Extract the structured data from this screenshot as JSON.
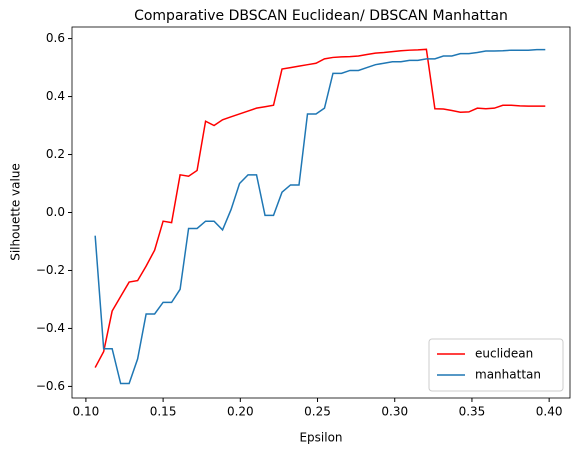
{
  "chart_data": {
    "type": "line",
    "title": "Comparative DBSCAN Euclidean/ DBSCAN Manhattan",
    "xlabel": "Epsilon",
    "ylabel": "Silhouette value",
    "x": [
      0.106,
      0.1115,
      0.117,
      0.1225,
      0.128,
      0.1335,
      0.139,
      0.1445,
      0.15,
      0.1555,
      0.161,
      0.1665,
      0.172,
      0.1775,
      0.183,
      0.1885,
      0.194,
      0.1995,
      0.205,
      0.2105,
      0.216,
      0.2215,
      0.227,
      0.2325,
      0.238,
      0.2435,
      0.249,
      0.2545,
      0.26,
      0.2655,
      0.271,
      0.2765,
      0.282,
      0.2875,
      0.293,
      0.2985,
      0.304,
      0.3095,
      0.315,
      0.3205,
      0.326,
      0.3315,
      0.337,
      0.3425,
      0.348,
      0.3535,
      0.359,
      0.3645,
      0.37,
      0.3755,
      0.381,
      0.3865,
      0.392,
      0.3975
    ],
    "series": [
      {
        "name": "euclidean",
        "color": "#ff0000",
        "values": [
          -0.535,
          -0.48,
          -0.34,
          -0.29,
          -0.24,
          -0.235,
          -0.185,
          -0.13,
          -0.03,
          -0.035,
          0.13,
          0.125,
          0.145,
          0.315,
          0.3,
          0.32,
          0.33,
          0.34,
          0.35,
          0.36,
          0.365,
          0.37,
          0.495,
          0.5,
          0.505,
          0.51,
          0.515,
          0.53,
          0.535,
          0.537,
          0.538,
          0.54,
          0.545,
          0.55,
          0.552,
          0.555,
          0.558,
          0.56,
          0.561,
          0.563,
          0.358,
          0.357,
          0.352,
          0.346,
          0.347,
          0.36,
          0.358,
          0.36,
          0.37,
          0.37,
          0.368,
          0.367,
          0.367,
          0.367
        ]
      },
      {
        "name": "manhattan",
        "color": "#1f77b4",
        "values": [
          -0.08,
          -0.47,
          -0.47,
          -0.59,
          -0.59,
          -0.505,
          -0.35,
          -0.35,
          -0.31,
          -0.31,
          -0.265,
          -0.055,
          -0.055,
          -0.03,
          -0.03,
          -0.06,
          0.01,
          0.1,
          0.13,
          0.13,
          -0.01,
          -0.01,
          0.07,
          0.095,
          0.095,
          0.34,
          0.34,
          0.36,
          0.48,
          0.48,
          0.49,
          0.49,
          0.5,
          0.51,
          0.515,
          0.52,
          0.52,
          0.525,
          0.525,
          0.53,
          0.53,
          0.54,
          0.54,
          0.548,
          0.548,
          0.552,
          0.557,
          0.557,
          0.558,
          0.56,
          0.56,
          0.56,
          0.562,
          0.562
        ]
      }
    ],
    "xlim": [
      0.091,
      0.4135
    ],
    "ylim": [
      -0.64,
      0.64
    ],
    "xticks": [
      {
        "value": 0.1,
        "label": "0.10"
      },
      {
        "value": 0.15,
        "label": "0.15"
      },
      {
        "value": 0.2,
        "label": "0.20"
      },
      {
        "value": 0.25,
        "label": "0.25"
      },
      {
        "value": 0.3,
        "label": "0.30"
      },
      {
        "value": 0.35,
        "label": "0.35"
      },
      {
        "value": 0.4,
        "label": "0.40"
      }
    ],
    "yticks": [
      {
        "value": -0.6,
        "label": "−0.6"
      },
      {
        "value": -0.4,
        "label": "−0.4"
      },
      {
        "value": -0.2,
        "label": "−0.2"
      },
      {
        "value": 0,
        "label": "0.0"
      },
      {
        "value": 0.2,
        "label": "0.2"
      },
      {
        "value": 0.4,
        "label": "0.4"
      },
      {
        "value": 0.6,
        "label": "0.6"
      }
    ],
    "legend": "lower right"
  }
}
